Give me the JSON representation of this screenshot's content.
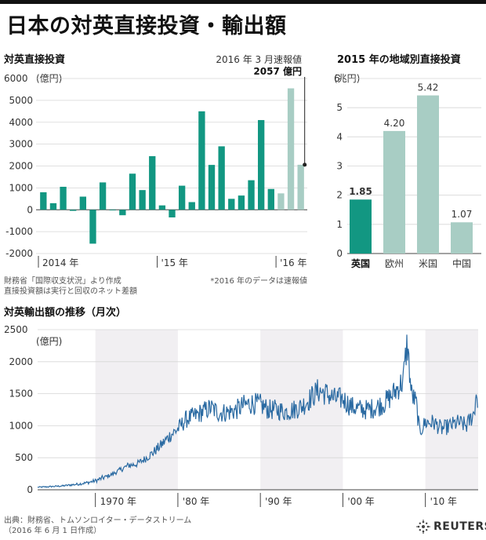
{
  "page": {
    "title": "日本の対英直接投資・輸出額",
    "source_line1": "出典：財務省、トムソンロイター・データストリーム",
    "source_line2": "（2016 年 6 月 1 日作成）",
    "brand": "REUTERS",
    "brand_icon": "reuters-dot-logo-icon"
  },
  "colors": {
    "teal": "#129782",
    "light_teal": "#a8cdc4",
    "line_blue": "#2a6aa2",
    "band_gray": "#f1eff2"
  },
  "chart_data": [
    {
      "type": "bar",
      "title": "対英直接投資",
      "unit": "(億円)",
      "annotation": {
        "label": "2016 年 3 月速報値",
        "value_label": "2057 億円",
        "value": 2057
      },
      "note_source": "財務省「国際収支状況」より作成",
      "note_desc": "直接投資額は実行と回収のネット差額",
      "note_star": "*2016 年のデータは速報値",
      "x_labels": [
        "2014 年",
        "'15 年",
        "'16 年"
      ],
      "yticks": [
        "6000",
        "5000",
        "4000",
        "3000",
        "2000",
        "1000",
        "0",
        "-1000",
        "-2000"
      ],
      "ylim": [
        -2000,
        6000
      ],
      "values": [
        800,
        300,
        1050,
        -50,
        600,
        -1550,
        1250,
        0,
        -250,
        1650,
        900,
        2450,
        200,
        -350,
        1100,
        350,
        4500,
        2050,
        2900,
        500,
        650,
        1350,
        4100,
        950,
        750,
        5550,
        2057
      ],
      "preliminary_from_index": 24
    },
    {
      "type": "bar",
      "title": "2015 年の地域別直接投資",
      "unit": "(兆円)",
      "yticks": [
        "6",
        "5",
        "4",
        "3",
        "2",
        "1",
        "0"
      ],
      "ylim": [
        0,
        6
      ],
      "categories": [
        "英国",
        "欧州",
        "米国",
        "中国"
      ],
      "values": [
        1.85,
        4.2,
        5.42,
        1.07
      ],
      "value_labels": [
        "1.85",
        "4.20",
        "5.42",
        "1.07"
      ],
      "highlight": "英国"
    },
    {
      "type": "line",
      "title": "対英輸出額の推移（月次）",
      "unit": "(億円)",
      "yticks": [
        "2500",
        "2000",
        "1500",
        "1000",
        "500",
        "0"
      ],
      "ylim": [
        0,
        2500
      ],
      "xlim": [
        1963,
        2016.4
      ],
      "x_labels": [
        "1970 年",
        "'80 年",
        "'90 年",
        "'00 年",
        "'10 年"
      ],
      "x_label_years": [
        1970,
        1980,
        1990,
        2000,
        2010
      ],
      "shaded_decades": [
        [
          1970,
          1980
        ],
        [
          1990,
          2000
        ],
        [
          2010,
          2016.4
        ]
      ],
      "anchor_points": [
        [
          1963.0,
          40
        ],
        [
          1964,
          45
        ],
        [
          1966,
          60
        ],
        [
          1968,
          90
        ],
        [
          1969,
          110
        ],
        [
          1970,
          140
        ],
        [
          1971,
          190
        ],
        [
          1972,
          240
        ],
        [
          1973,
          310
        ],
        [
          1974,
          380
        ],
        [
          1975,
          400
        ],
        [
          1976,
          480
        ],
        [
          1977,
          580
        ],
        [
          1978,
          700
        ],
        [
          1979,
          840
        ],
        [
          1980,
          950
        ],
        [
          1981,
          1100
        ],
        [
          1982,
          1150
        ],
        [
          1983,
          1220
        ],
        [
          1984,
          1280
        ],
        [
          1985,
          1200
        ],
        [
          1986,
          1210
        ],
        [
          1987,
          1240
        ],
        [
          1988,
          1320
        ],
        [
          1989,
          1350
        ],
        [
          1990,
          1330
        ],
        [
          1991,
          1250
        ],
        [
          1992,
          1250
        ],
        [
          1993,
          1220
        ],
        [
          1994,
          1250
        ],
        [
          1995,
          1300
        ],
        [
          1996,
          1420
        ],
        [
          1997,
          1550
        ],
        [
          1998,
          1500
        ],
        [
          1999,
          1420
        ],
        [
          2000,
          1420
        ],
        [
          2001,
          1300
        ],
        [
          2002,
          1260
        ],
        [
          2003,
          1250
        ],
        [
          2004,
          1290
        ],
        [
          2005,
          1350
        ],
        [
          2006,
          1480
        ],
        [
          2007.3,
          1700
        ],
        [
          2007.8,
          2300
        ],
        [
          2008.3,
          1500
        ],
        [
          2008.9,
          1350
        ],
        [
          2009.3,
          900
        ],
        [
          2010,
          1050
        ],
        [
          2011,
          1050
        ],
        [
          2012,
          950
        ],
        [
          2013,
          1000
        ],
        [
          2014,
          1050
        ],
        [
          2015,
          1000
        ],
        [
          2015.9,
          1200
        ],
        [
          2016.2,
          1550
        ],
        [
          2016.4,
          1300
        ]
      ]
    }
  ]
}
